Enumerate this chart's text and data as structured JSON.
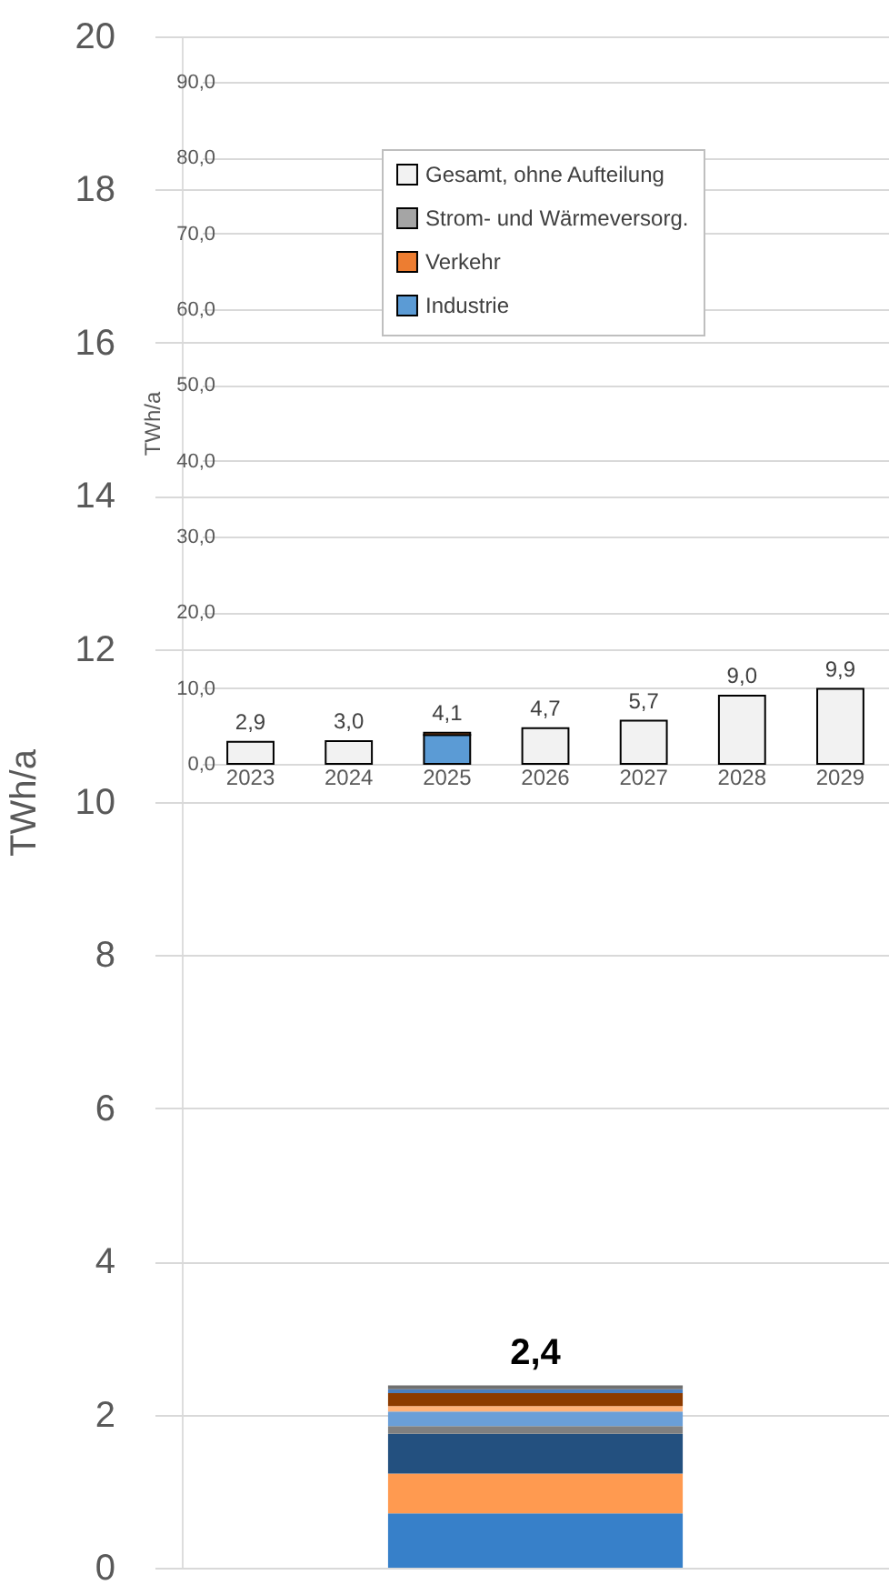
{
  "chart_data": [
    {
      "type": "bar",
      "categories": [
        null
      ],
      "stacked": true,
      "ylabel": "TWh/a",
      "ylim": [
        0,
        20
      ],
      "yticks": [
        0,
        2,
        4,
        6,
        8,
        10,
        12,
        14,
        16,
        18,
        20
      ],
      "grid": "y",
      "legend": false,
      "totals": [
        "2,4"
      ],
      "series": [
        {
          "color": "#3780c9",
          "values": [
            0.71
          ]
        },
        {
          "color": "#ff9a50",
          "values": [
            0.52
          ]
        },
        {
          "color": "#23507f",
          "values": [
            0.52
          ]
        },
        {
          "color": "#808080",
          "values": [
            0.1
          ]
        },
        {
          "color": "#6a9fd8",
          "values": [
            0.19
          ]
        },
        {
          "color": "#ffb27a",
          "values": [
            0.07
          ]
        },
        {
          "color": "#8c3b00",
          "values": [
            0.17
          ]
        },
        {
          "color": "#4a7fc0",
          "values": [
            0.05
          ]
        },
        {
          "color": "#707070",
          "values": [
            0.05
          ]
        }
      ]
    },
    {
      "type": "bar",
      "categories": [
        "2023",
        "2024",
        "2025",
        "2026",
        "2027",
        "2028",
        "2029"
      ],
      "stacked": true,
      "ylabel": "TWh/a",
      "ylim": [
        0,
        90
      ],
      "grid": "y",
      "legend": "top",
      "yticks": [
        {
          "value": 0,
          "label": "0,0"
        },
        {
          "value": 10,
          "label": "10,0"
        },
        {
          "value": 20,
          "label": "20,0"
        },
        {
          "value": 30,
          "label": "30,0"
        },
        {
          "value": 40,
          "label": "40,0"
        },
        {
          "value": 50,
          "label": "50,0"
        },
        {
          "value": 60,
          "label": "60,0"
        },
        {
          "value": 70,
          "label": "70,0"
        },
        {
          "value": 80,
          "label": "80,0"
        },
        {
          "value": 90,
          "label": "90,0"
        }
      ],
      "totals": [
        "2,9",
        "3,0",
        "4,1",
        "4,7",
        "5,7",
        "9,0",
        "9,9"
      ],
      "series": [
        {
          "name": "Industrie",
          "color": "#5b9bd5",
          "values": [
            null,
            null,
            3.8,
            null,
            null,
            null,
            null
          ]
        },
        {
          "name": "Verkehr",
          "color": "#ed7d31",
          "values": [
            null,
            null,
            0.3,
            null,
            null,
            null,
            null
          ]
        },
        {
          "name": "Strom- und Wärmeversorg.",
          "color": "#a5a5a5",
          "values": [
            null,
            null,
            null,
            null,
            null,
            null,
            null
          ]
        },
        {
          "name": "Gesamt, ohne Aufteilung",
          "color": "#f2f2f2",
          "values": [
            2.9,
            3.0,
            null,
            4.7,
            5.7,
            9.0,
            9.9
          ]
        }
      ]
    }
  ]
}
